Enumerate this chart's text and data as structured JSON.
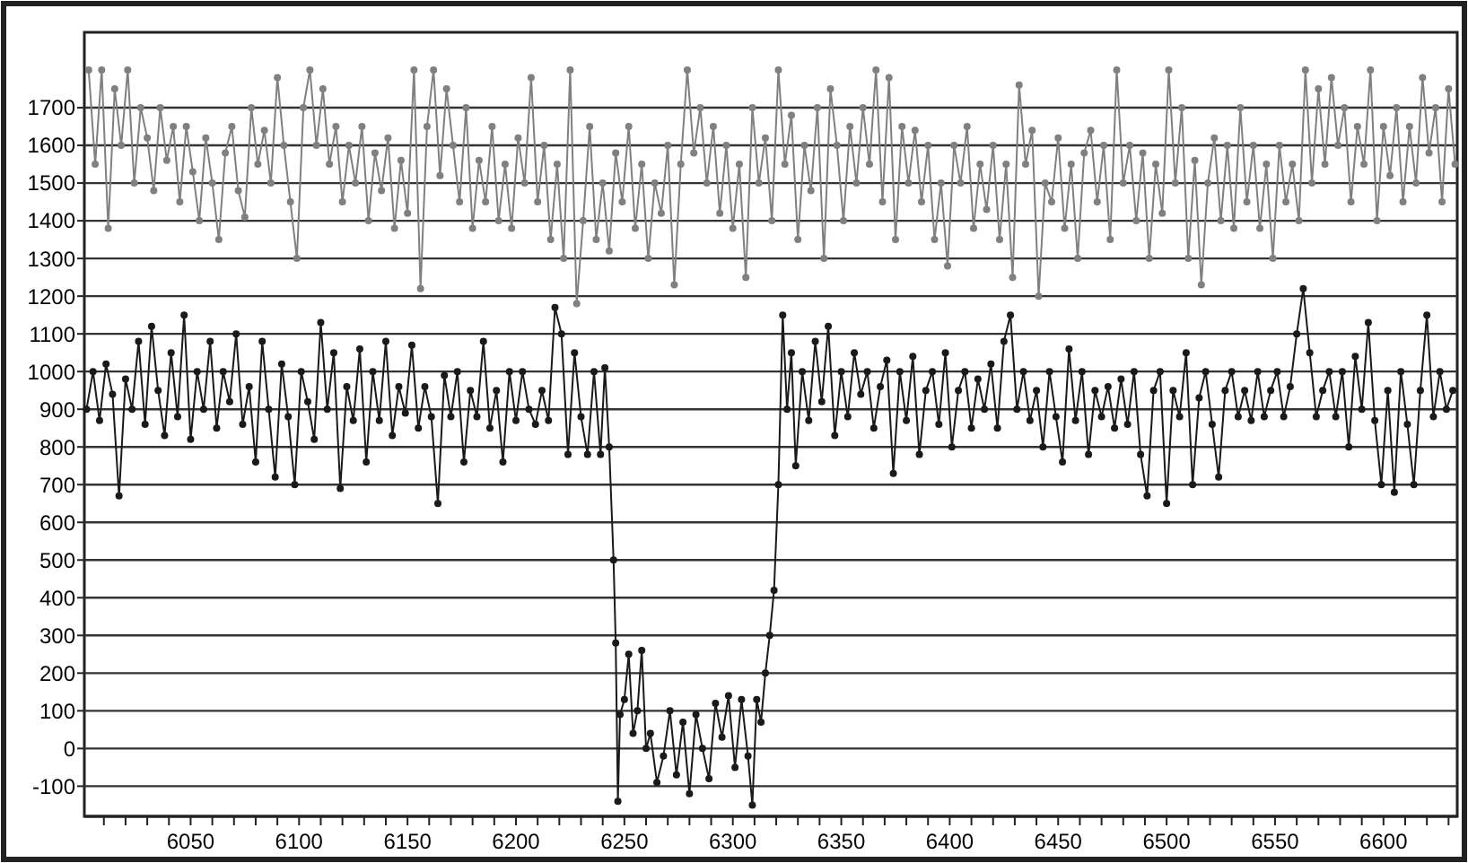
{
  "chart_data": {
    "type": "line",
    "xlim": [
      6001,
      6634
    ],
    "ylim": [
      -180,
      1900
    ],
    "xticks": [
      {
        "value": 6010,
        "label": null
      },
      {
        "value": 6020,
        "label": null
      },
      {
        "value": 6030,
        "label": null
      },
      {
        "value": 6040,
        "label": null
      },
      6050,
      {
        "value": 6060,
        "label": null
      },
      {
        "value": 6070,
        "label": null
      },
      {
        "value": 6080,
        "label": null
      },
      {
        "value": 6090,
        "label": null
      },
      6100,
      {
        "value": 6110,
        "label": null
      },
      {
        "value": 6120,
        "label": null
      },
      {
        "value": 6130,
        "label": null
      },
      {
        "value": 6140,
        "label": null
      },
      6150,
      {
        "value": 6160,
        "label": null
      },
      {
        "value": 6170,
        "label": null
      },
      {
        "value": 6180,
        "label": null
      },
      {
        "value": 6190,
        "label": null
      },
      6200,
      {
        "value": 6210,
        "label": null
      },
      {
        "value": 6220,
        "label": null
      },
      {
        "value": 6230,
        "label": null
      },
      {
        "value": 6240,
        "label": null
      },
      6250,
      {
        "value": 6260,
        "label": null
      },
      {
        "value": 6270,
        "label": null
      },
      {
        "value": 6280,
        "label": null
      },
      {
        "value": 6290,
        "label": null
      },
      6300,
      {
        "value": 6310,
        "label": null
      },
      {
        "value": 6320,
        "label": null
      },
      {
        "value": 6330,
        "label": null
      },
      {
        "value": 6340,
        "label": null
      },
      6350,
      {
        "value": 6360,
        "label": null
      },
      {
        "value": 6370,
        "label": null
      },
      {
        "value": 6380,
        "label": null
      },
      {
        "value": 6390,
        "label": null
      },
      6400,
      {
        "value": 6410,
        "label": null
      },
      {
        "value": 6420,
        "label": null
      },
      {
        "value": 6430,
        "label": null
      },
      {
        "value": 6440,
        "label": null
      },
      6450,
      {
        "value": 6460,
        "label": null
      },
      {
        "value": 6470,
        "label": null
      },
      {
        "value": 6480,
        "label": null
      },
      {
        "value": 6490,
        "label": null
      },
      6500,
      {
        "value": 6510,
        "label": null
      },
      {
        "value": 6520,
        "label": null
      },
      {
        "value": 6530,
        "label": null
      },
      {
        "value": 6540,
        "label": null
      },
      6550,
      {
        "value": 6560,
        "label": null
      },
      {
        "value": 6570,
        "label": null
      },
      {
        "value": 6580,
        "label": null
      },
      {
        "value": 6590,
        "label": null
      },
      6600,
      {
        "value": 6610,
        "label": null
      },
      {
        "value": 6620,
        "label": null
      },
      {
        "value": 6630,
        "label": null
      }
    ],
    "yticks": [
      -100,
      0,
      100,
      200,
      300,
      400,
      500,
      600,
      700,
      800,
      900,
      1000,
      1100,
      1200,
      1300,
      1400,
      1500,
      1600,
      1700
    ],
    "grid": "y",
    "marker": "circle",
    "line_style": "solid",
    "series": [
      {
        "color": "#808080",
        "x": [
          6003,
          6006,
          6009,
          6012,
          6015,
          6018,
          6021,
          6024,
          6027,
          6030,
          6033,
          6036,
          6039,
          6042,
          6045,
          6048,
          6051,
          6054,
          6057,
          6060,
          6063,
          6066,
          6069,
          6072,
          6075,
          6078,
          6081,
          6084,
          6087,
          6090,
          6093,
          6096,
          6099,
          6102,
          6105,
          6108,
          6111,
          6114,
          6117,
          6120,
          6123,
          6126,
          6129,
          6132,
          6135,
          6138,
          6141,
          6144,
          6147,
          6150,
          6153,
          6156,
          6159,
          6162,
          6165,
          6168,
          6171,
          6174,
          6177,
          6180,
          6183,
          6186,
          6189,
          6192,
          6195,
          6198,
          6201,
          6204,
          6207,
          6210,
          6213,
          6216,
          6219,
          6222,
          6225,
          6228,
          6231,
          6234,
          6237,
          6240,
          6243,
          6246,
          6249,
          6252,
          6255,
          6258,
          6261,
          6264,
          6267,
          6270,
          6273,
          6276,
          6279,
          6282,
          6285,
          6288,
          6291,
          6294,
          6297,
          6300,
          6303,
          6306,
          6309,
          6312,
          6315,
          6318,
          6321,
          6324,
          6327,
          6330,
          6333,
          6336,
          6339,
          6342,
          6345,
          6348,
          6351,
          6354,
          6357,
          6360,
          6363,
          6366,
          6369,
          6372,
          6375,
          6378,
          6381,
          6384,
          6387,
          6390,
          6393,
          6396,
          6399,
          6402,
          6405,
          6408,
          6411,
          6414,
          6417,
          6420,
          6423,
          6426,
          6429,
          6432,
          6435,
          6438,
          6441,
          6444,
          6447,
          6450,
          6453,
          6456,
          6459,
          6462,
          6465,
          6468,
          6471,
          6474,
          6477,
          6480,
          6483,
          6486,
          6489,
          6492,
          6495,
          6498,
          6501,
          6504,
          6507,
          6510,
          6513,
          6516,
          6519,
          6522,
          6525,
          6528,
          6531,
          6534,
          6537,
          6540,
          6543,
          6546,
          6549,
          6552,
          6555,
          6558,
          6561,
          6564,
          6567,
          6570,
          6573,
          6576,
          6579,
          6582,
          6585,
          6588,
          6591,
          6594,
          6597,
          6600,
          6603,
          6606,
          6609,
          6612,
          6615,
          6618,
          6621,
          6624,
          6627,
          6630,
          6633
        ],
        "values": [
          1800,
          1550,
          1800,
          1380,
          1750,
          1600,
          1800,
          1500,
          1700,
          1620,
          1480,
          1700,
          1560,
          1650,
          1450,
          1650,
          1530,
          1400,
          1620,
          1500,
          1350,
          1580,
          1650,
          1480,
          1410,
          1700,
          1550,
          1640,
          1500,
          1780,
          1600,
          1450,
          1300,
          1700,
          1800,
          1600,
          1750,
          1550,
          1650,
          1450,
          1600,
          1500,
          1650,
          1400,
          1580,
          1480,
          1620,
          1380,
          1560,
          1420,
          1800,
          1220,
          1650,
          1800,
          1520,
          1750,
          1600,
          1450,
          1700,
          1380,
          1560,
          1450,
          1650,
          1400,
          1550,
          1380,
          1620,
          1500,
          1780,
          1450,
          1600,
          1350,
          1550,
          1300,
          1800,
          1180,
          1400,
          1650,
          1350,
          1500,
          1320,
          1580,
          1450,
          1650,
          1380,
          1550,
          1300,
          1500,
          1420,
          1600,
          1230,
          1550,
          1800,
          1580,
          1700,
          1500,
          1650,
          1420,
          1600,
          1380,
          1550,
          1250,
          1700,
          1500,
          1620,
          1400,
          1800,
          1550,
          1680,
          1350,
          1600,
          1480,
          1700,
          1300,
          1750,
          1600,
          1400,
          1650,
          1500,
          1700,
          1550,
          1800,
          1450,
          1780,
          1350,
          1650,
          1500,
          1640,
          1450,
          1600,
          1350,
          1500,
          1280,
          1600,
          1500,
          1650,
          1380,
          1550,
          1430,
          1600,
          1350,
          1550,
          1250,
          1760,
          1550,
          1640,
          1200,
          1500,
          1450,
          1620,
          1380,
          1550,
          1300,
          1580,
          1640,
          1450,
          1600,
          1350,
          1800,
          1500,
          1600,
          1400,
          1580,
          1300,
          1550,
          1420,
          1800,
          1500,
          1700,
          1300,
          1560,
          1230,
          1500,
          1620,
          1400,
          1600,
          1380,
          1700,
          1450,
          1600,
          1380,
          1550,
          1300,
          1600,
          1450,
          1550,
          1400,
          1800,
          1500,
          1750,
          1550,
          1780,
          1600,
          1700,
          1450,
          1650,
          1550,
          1800,
          1400,
          1650,
          1520,
          1700,
          1450,
          1650,
          1500,
          1780,
          1580,
          1700,
          1450,
          1750,
          1550
        ]
      },
      {
        "color": "#1a1a1a",
        "x": [
          6002,
          6005,
          6008,
          6011,
          6014,
          6017,
          6020,
          6023,
          6026,
          6029,
          6032,
          6035,
          6038,
          6041,
          6044,
          6047,
          6050,
          6053,
          6056,
          6059,
          6062,
          6065,
          6068,
          6071,
          6074,
          6077,
          6080,
          6083,
          6086,
          6089,
          6092,
          6095,
          6098,
          6101,
          6104,
          6107,
          6110,
          6113,
          6116,
          6119,
          6122,
          6125,
          6128,
          6131,
          6134,
          6137,
          6140,
          6143,
          6146,
          6149,
          6152,
          6155,
          6158,
          6161,
          6164,
          6167,
          6170,
          6173,
          6176,
          6179,
          6182,
          6185,
          6188,
          6191,
          6194,
          6197,
          6200,
          6203,
          6206,
          6209,
          6212,
          6215,
          6218,
          6221,
          6224,
          6227,
          6230,
          6233,
          6236,
          6239,
          6241,
          6243,
          6245,
          6246,
          6247,
          6248,
          6250,
          6252,
          6254,
          6256,
          6258,
          6260,
          6262,
          6265,
          6268,
          6271,
          6274,
          6277,
          6280,
          6283,
          6286,
          6289,
          6292,
          6295,
          6298,
          6301,
          6304,
          6307,
          6309,
          6311,
          6313,
          6315,
          6317,
          6319,
          6321,
          6323,
          6325,
          6327,
          6329,
          6332,
          6335,
          6338,
          6341,
          6344,
          6347,
          6350,
          6353,
          6356,
          6359,
          6362,
          6365,
          6368,
          6371,
          6374,
          6377,
          6380,
          6383,
          6386,
          6389,
          6392,
          6395,
          6398,
          6401,
          6404,
          6407,
          6410,
          6413,
          6416,
          6419,
          6422,
          6425,
          6428,
          6431,
          6434,
          6437,
          6440,
          6443,
          6446,
          6449,
          6452,
          6455,
          6458,
          6461,
          6464,
          6467,
          6470,
          6473,
          6476,
          6479,
          6482,
          6485,
          6488,
          6491,
          6494,
          6497,
          6500,
          6503,
          6506,
          6509,
          6512,
          6515,
          6518,
          6521,
          6524,
          6527,
          6530,
          6533,
          6536,
          6539,
          6542,
          6545,
          6548,
          6551,
          6554,
          6557,
          6560,
          6563,
          6566,
          6569,
          6572,
          6575,
          6578,
          6581,
          6584,
          6587,
          6590,
          6593,
          6596,
          6599,
          6602,
          6605,
          6608,
          6611,
          6614,
          6617,
          6620,
          6623,
          6626,
          6629,
          6632
        ],
        "values": [
          900,
          1000,
          870,
          1020,
          940,
          670,
          980,
          900,
          1080,
          860,
          1120,
          950,
          830,
          1050,
          880,
          1150,
          820,
          1000,
          900,
          1080,
          850,
          1000,
          920,
          1100,
          860,
          960,
          760,
          1080,
          900,
          720,
          1020,
          880,
          700,
          1000,
          920,
          820,
          1130,
          900,
          1050,
          690,
          960,
          870,
          1060,
          760,
          1000,
          870,
          1080,
          830,
          960,
          890,
          1070,
          850,
          960,
          880,
          650,
          990,
          880,
          1000,
          760,
          950,
          880,
          1080,
          850,
          950,
          760,
          1000,
          870,
          1000,
          900,
          860,
          950,
          870,
          1170,
          1100,
          780,
          1050,
          880,
          780,
          1000,
          780,
          1010,
          800,
          500,
          280,
          -140,
          90,
          130,
          250,
          40,
          100,
          260,
          0,
          40,
          -90,
          -20,
          100,
          -70,
          70,
          -120,
          90,
          0,
          -80,
          120,
          30,
          140,
          -50,
          130,
          -20,
          -150,
          130,
          70,
          200,
          300,
          420,
          700,
          1150,
          900,
          1050,
          750,
          1000,
          870,
          1080,
          920,
          1120,
          830,
          1000,
          880,
          1050,
          940,
          1000,
          850,
          960,
          1030,
          730,
          1000,
          870,
          1040,
          780,
          950,
          1000,
          860,
          1050,
          800,
          950,
          1000,
          850,
          980,
          900,
          1020,
          850,
          1080,
          1150,
          900,
          1000,
          870,
          950,
          800,
          1000,
          880,
          760,
          1060,
          870,
          1000,
          780,
          950,
          880,
          960,
          850,
          980,
          860,
          1000,
          780,
          670,
          950,
          1000,
          650,
          950,
          880,
          1050,
          700,
          930,
          1000,
          860,
          720,
          950,
          1000,
          880,
          950,
          870,
          1000,
          880,
          950,
          1000,
          880,
          960,
          1100,
          1220,
          1050,
          880,
          950,
          1000,
          880,
          1000,
          800,
          1040,
          900,
          1130,
          870,
          700,
          950,
          680,
          1000,
          860,
          700,
          950,
          1150,
          880,
          1000,
          900,
          950
        ]
      }
    ]
  }
}
